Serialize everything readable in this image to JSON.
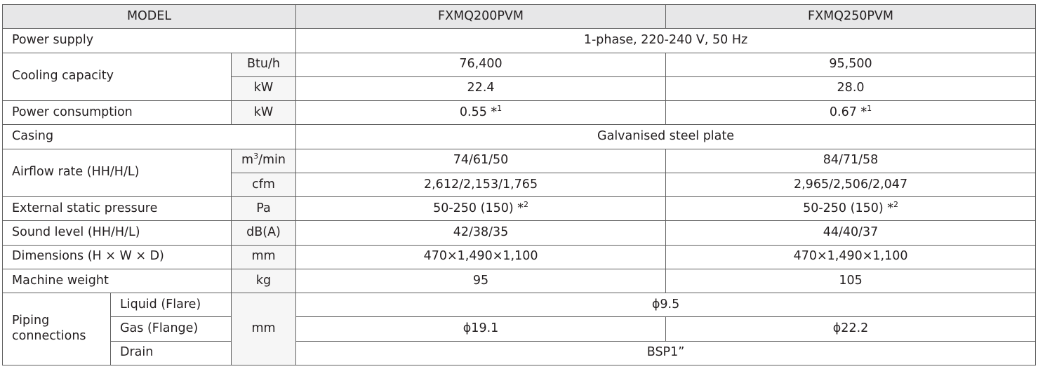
{
  "header": {
    "model": "MODEL",
    "models": [
      "FXMQ200PVM",
      "FXMQ250PVM"
    ]
  },
  "rows": {
    "power_supply": {
      "label": "Power supply",
      "value": "1-phase, 220-240 V, 50 Hz"
    },
    "cooling": {
      "label": "Cooling capacity",
      "btu_unit": "Btu/h",
      "btu": [
        "76,400",
        "95,500"
      ],
      "kw_unit": "kW",
      "kw": [
        "22.4",
        "28.0"
      ]
    },
    "power_consumption": {
      "label": "Power consumption",
      "unit": "kW",
      "values": [
        "0.55 *",
        "0.67 *"
      ],
      "note": "1"
    },
    "casing": {
      "label": "Casing",
      "value": "Galvanised steel plate"
    },
    "airflow": {
      "label": "Airflow rate (HH/H/L)",
      "m3_unit": "m",
      "m3_sup": "3",
      "m3_unit_tail": "/min",
      "m3": [
        "74/61/50",
        "84/71/58"
      ],
      "cfm_unit": "cfm",
      "cfm": [
        "2,612/2,153/1,765",
        "2,965/2,506/2,047"
      ]
    },
    "esp": {
      "label": "External static pressure",
      "unit": "Pa",
      "values": [
        "50-250 (150) *",
        "50-250 (150) *"
      ],
      "note": "2"
    },
    "sound": {
      "label": "Sound level (HH/H/L)",
      "unit": "dB(A)",
      "values": [
        "42/38/35",
        "44/40/37"
      ]
    },
    "dimensions": {
      "label": "Dimensions (H × W × D)",
      "unit": "mm",
      "values": [
        "470×1,490×1,100",
        "470×1,490×1,100"
      ]
    },
    "weight": {
      "label": "Machine weight",
      "unit": "kg",
      "values": [
        "95",
        "105"
      ]
    },
    "piping": {
      "label_line1": "Piping",
      "label_line2": "connections",
      "unit": "mm",
      "liquid_label": "Liquid (Flare)",
      "liquid": "ϕ9.5",
      "gas_label": "Gas (Flange)",
      "gas": [
        "ϕ19.1",
        "ϕ22.2"
      ],
      "drain_label": "Drain",
      "drain": "BSP1”"
    }
  }
}
